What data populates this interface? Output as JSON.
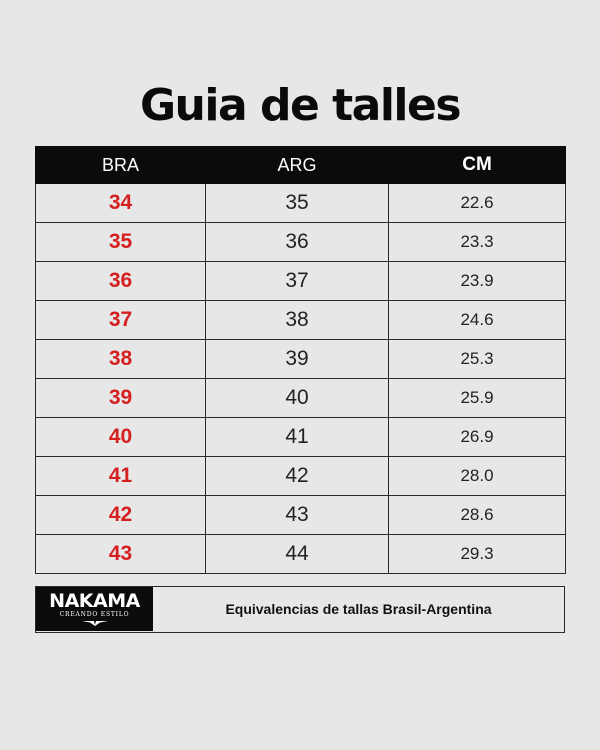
{
  "title": "Guia de talles",
  "table": {
    "headers": {
      "bra": "BRA",
      "arg": "ARG",
      "cm": "CM"
    },
    "rows": [
      {
        "bra": "34",
        "arg": "35",
        "cm": "22.6"
      },
      {
        "bra": "35",
        "arg": "36",
        "cm": "23.3"
      },
      {
        "bra": "36",
        "arg": "37",
        "cm": "23.9"
      },
      {
        "bra": "37",
        "arg": "38",
        "cm": "24.6"
      },
      {
        "bra": "38",
        "arg": "39",
        "cm": "25.3"
      },
      {
        "bra": "39",
        "arg": "40",
        "cm": "25.9"
      },
      {
        "bra": "40",
        "arg": "41",
        "cm": "26.9"
      },
      {
        "bra": "41",
        "arg": "42",
        "cm": "28.0"
      },
      {
        "bra": "42",
        "arg": "43",
        "cm": "28.6"
      },
      {
        "bra": "43",
        "arg": "44",
        "cm": "29.3"
      }
    ]
  },
  "footer": {
    "logo_text": "NAKAMA",
    "logo_tagline": "CREANDO ESTILO",
    "description": "Equivalencias de tallas Brasil-Argentina"
  },
  "colors": {
    "background": "#e7e7e7",
    "header_bg": "#0b0b0b",
    "bra_accent": "#d42020"
  }
}
